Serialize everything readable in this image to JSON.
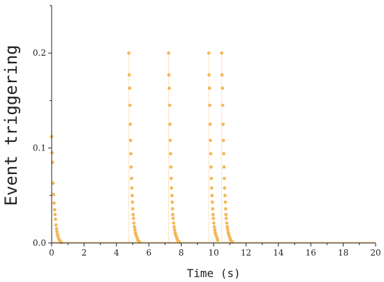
{
  "chart_data": {
    "type": "scatter",
    "xlabel": "Time (s)",
    "ylabel": "Event triggering",
    "xlim": [
      0,
      20
    ],
    "ylim": [
      0,
      0.25
    ],
    "xticks": [
      0,
      2,
      4,
      6,
      8,
      10,
      12,
      14,
      16,
      18,
      20
    ],
    "xtick_labels": [
      "0",
      "2",
      "4",
      "6",
      "8",
      "10",
      "12",
      "14",
      "16",
      "18",
      "20"
    ],
    "yticks": [
      0,
      0.1,
      0.2
    ],
    "ytick_labels": [
      "0.0",
      "0.1",
      "0.2"
    ],
    "grid": false,
    "colors": {
      "series": "#f5b75a",
      "axis": "#222222"
    },
    "series": [
      {
        "points": [
          [
            0.0,
            0.112
          ],
          [
            0.03,
            0.095
          ],
          [
            0.06,
            0.085
          ],
          [
            0.09,
            0.063
          ],
          [
            0.12,
            0.051
          ],
          [
            0.15,
            0.042
          ],
          [
            0.18,
            0.035
          ],
          [
            0.21,
            0.03
          ],
          [
            0.24,
            0.025
          ],
          [
            0.27,
            0.019
          ],
          [
            0.3,
            0.015
          ],
          [
            0.33,
            0.012
          ],
          [
            0.36,
            0.009
          ],
          [
            0.39,
            0.007
          ],
          [
            0.42,
            0.005
          ],
          [
            0.45,
            0.004
          ],
          [
            0.48,
            0.003
          ],
          [
            0.52,
            0.002
          ],
          [
            0.56,
            0.001
          ],
          [
            0.6,
            0.0005
          ],
          [
            4.77,
            0.2
          ],
          [
            4.79,
            0.177
          ],
          [
            4.81,
            0.163
          ],
          [
            4.83,
            0.145
          ],
          [
            4.85,
            0.125
          ],
          [
            4.87,
            0.108
          ],
          [
            4.89,
            0.094
          ],
          [
            4.91,
            0.08
          ],
          [
            4.93,
            0.068
          ],
          [
            4.95,
            0.058
          ],
          [
            4.97,
            0.05
          ],
          [
            4.99,
            0.043
          ],
          [
            5.01,
            0.036
          ],
          [
            5.03,
            0.03
          ],
          [
            5.05,
            0.026
          ],
          [
            5.08,
            0.021
          ],
          [
            5.11,
            0.017
          ],
          [
            5.14,
            0.014
          ],
          [
            5.17,
            0.011
          ],
          [
            5.2,
            0.009
          ],
          [
            5.24,
            0.007
          ],
          [
            5.28,
            0.005
          ],
          [
            5.32,
            0.003
          ],
          [
            5.37,
            0.002
          ],
          [
            5.43,
            0.001
          ],
          [
            7.22,
            0.2
          ],
          [
            7.24,
            0.177
          ],
          [
            7.26,
            0.163
          ],
          [
            7.28,
            0.145
          ],
          [
            7.3,
            0.125
          ],
          [
            7.32,
            0.108
          ],
          [
            7.34,
            0.094
          ],
          [
            7.36,
            0.08
          ],
          [
            7.38,
            0.068
          ],
          [
            7.4,
            0.058
          ],
          [
            7.42,
            0.05
          ],
          [
            7.44,
            0.043
          ],
          [
            7.46,
            0.036
          ],
          [
            7.48,
            0.03
          ],
          [
            7.5,
            0.026
          ],
          [
            7.53,
            0.021
          ],
          [
            7.56,
            0.017
          ],
          [
            7.59,
            0.014
          ],
          [
            7.62,
            0.011
          ],
          [
            7.65,
            0.009
          ],
          [
            7.69,
            0.007
          ],
          [
            7.73,
            0.005
          ],
          [
            7.77,
            0.003
          ],
          [
            7.82,
            0.002
          ],
          [
            7.88,
            0.001
          ],
          [
            9.7,
            0.2
          ],
          [
            9.72,
            0.177
          ],
          [
            9.74,
            0.163
          ],
          [
            9.76,
            0.145
          ],
          [
            9.78,
            0.125
          ],
          [
            9.8,
            0.108
          ],
          [
            9.82,
            0.094
          ],
          [
            9.84,
            0.08
          ],
          [
            9.86,
            0.068
          ],
          [
            9.88,
            0.058
          ],
          [
            9.9,
            0.05
          ],
          [
            9.92,
            0.043
          ],
          [
            9.94,
            0.036
          ],
          [
            9.96,
            0.03
          ],
          [
            9.98,
            0.026
          ],
          [
            10.01,
            0.021
          ],
          [
            10.04,
            0.017
          ],
          [
            10.07,
            0.014
          ],
          [
            10.1,
            0.011
          ],
          [
            10.13,
            0.009
          ],
          [
            10.17,
            0.007
          ],
          [
            10.21,
            0.005
          ],
          [
            10.25,
            0.003
          ],
          [
            10.5,
            0.2
          ],
          [
            10.52,
            0.177
          ],
          [
            10.54,
            0.163
          ],
          [
            10.56,
            0.145
          ],
          [
            10.58,
            0.125
          ],
          [
            10.6,
            0.108
          ],
          [
            10.62,
            0.094
          ],
          [
            10.64,
            0.08
          ],
          [
            10.66,
            0.068
          ],
          [
            10.68,
            0.058
          ],
          [
            10.7,
            0.05
          ],
          [
            10.72,
            0.043
          ],
          [
            10.74,
            0.036
          ],
          [
            10.76,
            0.03
          ],
          [
            10.78,
            0.026
          ],
          [
            10.81,
            0.021
          ],
          [
            10.84,
            0.017
          ],
          [
            10.87,
            0.014
          ],
          [
            10.9,
            0.011
          ],
          [
            10.93,
            0.009
          ],
          [
            10.97,
            0.007
          ],
          [
            11.01,
            0.005
          ],
          [
            11.05,
            0.003
          ],
          [
            11.1,
            0.002
          ],
          [
            11.16,
            0.001
          ]
        ],
        "spikes": [
          4.77,
          7.22,
          9.7,
          10.5
        ]
      }
    ]
  }
}
